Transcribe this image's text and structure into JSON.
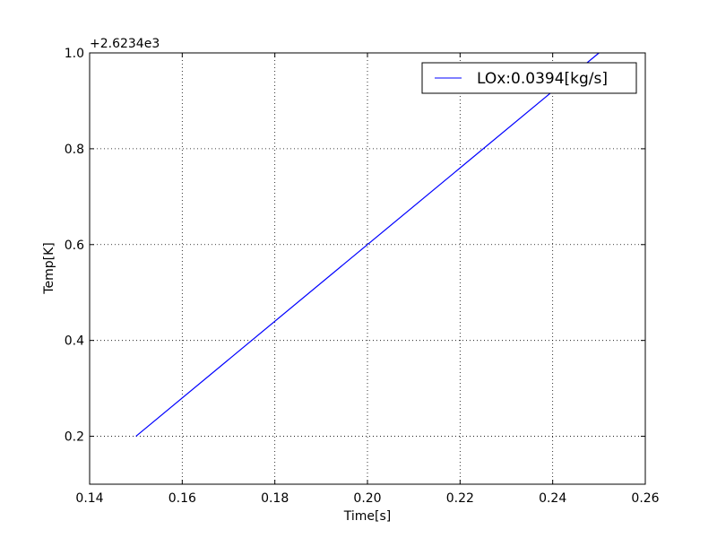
{
  "chart_data": {
    "type": "line",
    "title": "",
    "xlabel": "Time[s]",
    "ylabel": "Temp[K]",
    "offset_label": "+2.6234e3",
    "xlim": [
      0.14,
      0.26
    ],
    "ylim": [
      0.1,
      1.0
    ],
    "xticks": [
      0.14,
      0.16,
      0.18,
      0.2,
      0.22,
      0.24,
      0.26
    ],
    "xtick_labels": [
      "0.14",
      "0.16",
      "0.18",
      "0.20",
      "0.22",
      "0.24",
      "0.26"
    ],
    "yticks": [
      0.2,
      0.4,
      0.6,
      0.8,
      1.0
    ],
    "ytick_labels": [
      "0.2",
      "0.4",
      "0.6",
      "0.8",
      "1.0"
    ],
    "grid": true,
    "legend_position": "top-right",
    "series": [
      {
        "name": "LOx:0.0394[kg/s]",
        "color": "#0000ff",
        "x": [
          0.15,
          0.25
        ],
        "y": [
          0.2,
          1.0
        ]
      }
    ]
  }
}
